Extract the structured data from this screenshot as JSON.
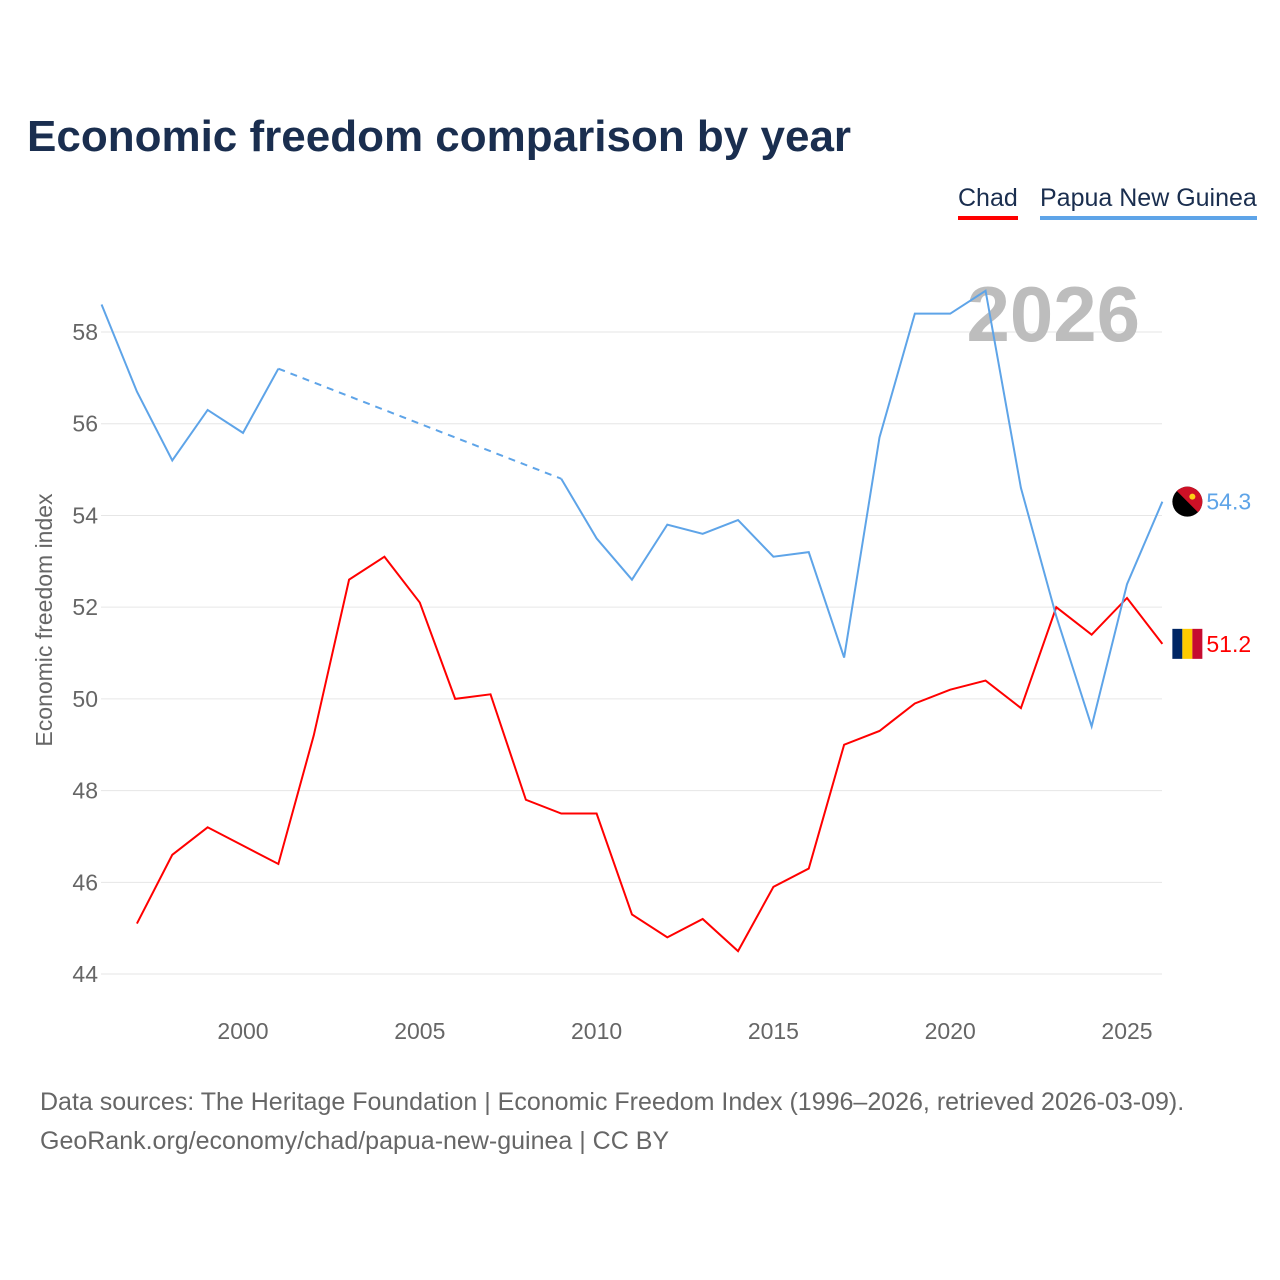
{
  "title": "Economic freedom comparison by year",
  "sources_line1": "Data sources: The Heritage Foundation | Economic Freedom Index (1996–2026, retrieved 2026-03-09).",
  "sources_line2": "GeoRank.org/economy/chad/papua-new-guinea | CC BY",
  "chart_data": {
    "type": "line",
    "title": "Economic freedom comparison by year",
    "xlabel": "",
    "ylabel": "Economic freedom index",
    "watermark_year": "2026",
    "xlim": [
      1996,
      2026
    ],
    "ylim": [
      43.5,
      59.5
    ],
    "x_ticks": [
      2000,
      2005,
      2010,
      2015,
      2020,
      2025
    ],
    "y_ticks": [
      44,
      46,
      48,
      50,
      52,
      54,
      56,
      58
    ],
    "grid": true,
    "legend_position": "top-right",
    "series": [
      {
        "name": "Chad",
        "color": "#ff0000",
        "end_label": "51.2",
        "x": [
          1997,
          1998,
          1999,
          2000,
          2001,
          2002,
          2003,
          2004,
          2005,
          2006,
          2007,
          2008,
          2009,
          2010,
          2011,
          2012,
          2013,
          2014,
          2015,
          2016,
          2017,
          2018,
          2019,
          2020,
          2021,
          2022,
          2023,
          2024,
          2025,
          2026
        ],
        "values": [
          45.1,
          46.6,
          47.2,
          46.8,
          46.4,
          49.2,
          52.6,
          53.1,
          52.1,
          50.0,
          50.1,
          47.8,
          47.5,
          47.5,
          45.3,
          44.8,
          45.2,
          44.5,
          45.9,
          46.3,
          49.0,
          49.3,
          49.9,
          50.2,
          50.4,
          49.8,
          52.0,
          51.4,
          52.2,
          51.2
        ]
      },
      {
        "name": "Papua New Guinea",
        "color": "#5ea4e8",
        "end_label": "54.3",
        "x": [
          1996,
          1997,
          1998,
          1999,
          2000,
          2001,
          2009,
          2010,
          2011,
          2012,
          2013,
          2014,
          2015,
          2016,
          2017,
          2018,
          2019,
          2020,
          2021,
          2022,
          2023,
          2024,
          2025,
          2026
        ],
        "values": [
          58.6,
          56.7,
          55.2,
          56.3,
          55.8,
          57.2,
          54.8,
          53.5,
          52.6,
          53.8,
          53.6,
          53.9,
          53.1,
          53.2,
          50.9,
          55.7,
          58.4,
          58.4,
          58.9,
          54.6,
          51.8,
          49.4,
          52.5,
          54.3
        ],
        "dashed_gap": [
          2001,
          2009
        ]
      }
    ]
  }
}
